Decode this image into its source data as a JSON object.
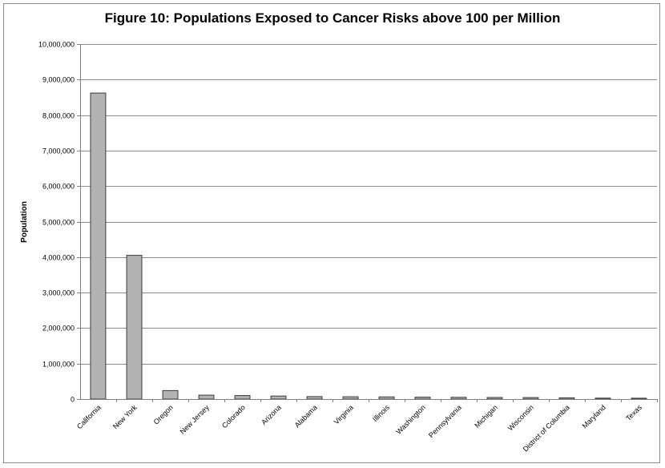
{
  "chart_data": {
    "type": "bar",
    "title": "Figure 10: Populations Exposed to Cancer Risks above 100 per Million",
    "xlabel": "",
    "ylabel": "Population",
    "categories": [
      "California",
      "New York",
      "Oregon",
      "New Jersey",
      "Colorado",
      "Arizona",
      "Alabama",
      "Virginia",
      "Illinois",
      "Washington",
      "Pennsylvania",
      "Michigan",
      "Wisconsin",
      "District of Columbia",
      "Maryland",
      "Texas"
    ],
    "series": [
      {
        "values": [
          8620000,
          4050000,
          240000,
          110000,
          100000,
          85000,
          70000,
          65000,
          60000,
          55000,
          50000,
          45000,
          42000,
          35000,
          28000,
          25000
        ]
      }
    ],
    "ylim": [
      0,
      10000000
    ],
    "yticks": [
      0,
      1000000,
      2000000,
      3000000,
      4000000,
      5000000,
      6000000,
      7000000,
      8000000,
      9000000,
      10000000
    ],
    "ytick_labels": [
      "0",
      "1,000,000",
      "2,000,000",
      "3,000,000",
      "4,000,000",
      "5,000,000",
      "6,000,000",
      "7,000,000",
      "8,000,000",
      "9,000,000",
      "10,000,000"
    ],
    "grid": true,
    "legend": "none",
    "colors": {
      "bar_fill": "#b3b3b3",
      "bar_stroke": "#3a3a3a",
      "grid": "#8c8c8c",
      "axis": "#808080"
    }
  }
}
